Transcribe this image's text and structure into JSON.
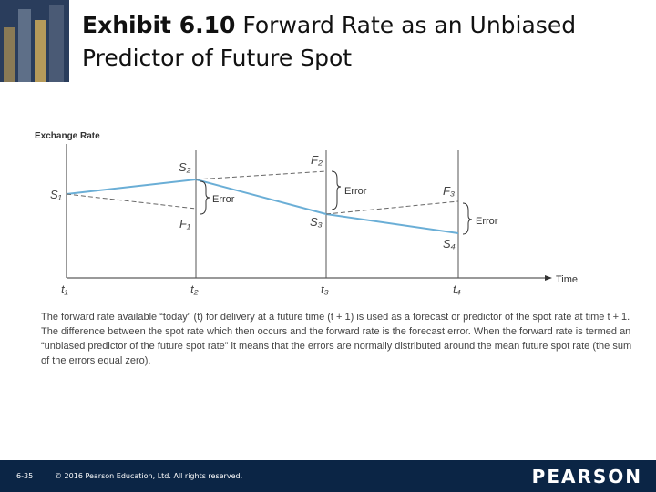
{
  "header": {
    "exhibit": "Exhibit 6.10",
    "title": "Forward Rate as an Unbiased Predictor of Future Spot"
  },
  "diagram": {
    "y_axis_label": "Exchange Rate",
    "x_axis_label": "Time",
    "times": [
      "t₁",
      "t₂",
      "t₃",
      "t₄"
    ],
    "spot_labels": [
      "S₁",
      "S₂",
      "S₃",
      "S₄"
    ],
    "forward_labels": [
      "F₁",
      "F₂",
      "F₃"
    ],
    "error_labels": [
      "Error",
      "Error",
      "Error"
    ]
  },
  "caption": "The forward rate available “today” (t) for delivery at a future time (t + 1) is used as a forecast or predictor of the spot rate at time t + 1. The difference between the spot rate which then occurs and the forward rate is the forecast error. When the forward rate is termed an “unbiased predictor of the future spot rate” it means that the errors are normally distributed around the mean future spot rate (the sum of the errors equal zero).",
  "footer": {
    "page": "6-35",
    "copyright": "© 2016 Pearson Education, Ltd. All rights reserved.",
    "brand": "PEARSON"
  }
}
